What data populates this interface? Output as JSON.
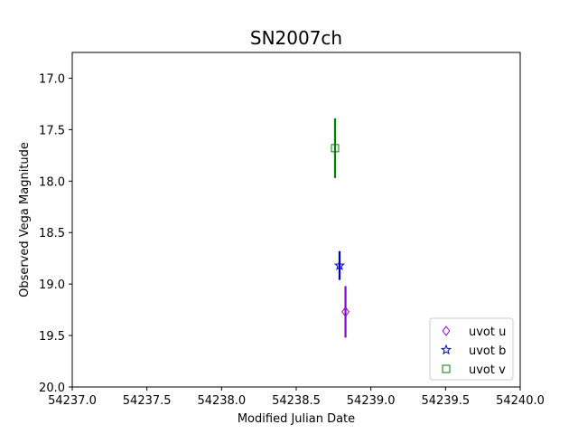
{
  "chart_data": {
    "type": "scatter",
    "title": "SN2007ch",
    "xlabel": "Modified Julian Date",
    "ylabel": "Observed Vega Magnitude",
    "xlim": [
      54237.0,
      54240.0
    ],
    "ylim": [
      20.0,
      16.75
    ],
    "y_inverted": true,
    "grid": false,
    "legend_position": "lower right",
    "x_ticks": [
      "54237.0",
      "54237.5",
      "54238.0",
      "54238.5",
      "54239.0",
      "54239.5",
      "54240.0"
    ],
    "y_ticks": [
      "17.0",
      "17.5",
      "18.0",
      "18.5",
      "19.0",
      "19.5",
      "20.0"
    ],
    "series": [
      {
        "name": "uvot u",
        "marker": "diamond",
        "color": "#9400d3",
        "points": [
          {
            "x": 54238.83,
            "y": 19.27,
            "yerr": 0.25
          }
        ]
      },
      {
        "name": "uvot b",
        "marker": "star",
        "color": "#0000cd",
        "points": [
          {
            "x": 54238.79,
            "y": 18.82,
            "yerr": 0.14
          }
        ]
      },
      {
        "name": "uvot v",
        "marker": "square",
        "color": "#008000",
        "points": [
          {
            "x": 54238.76,
            "y": 17.68,
            "yerr": 0.29
          }
        ]
      }
    ]
  }
}
